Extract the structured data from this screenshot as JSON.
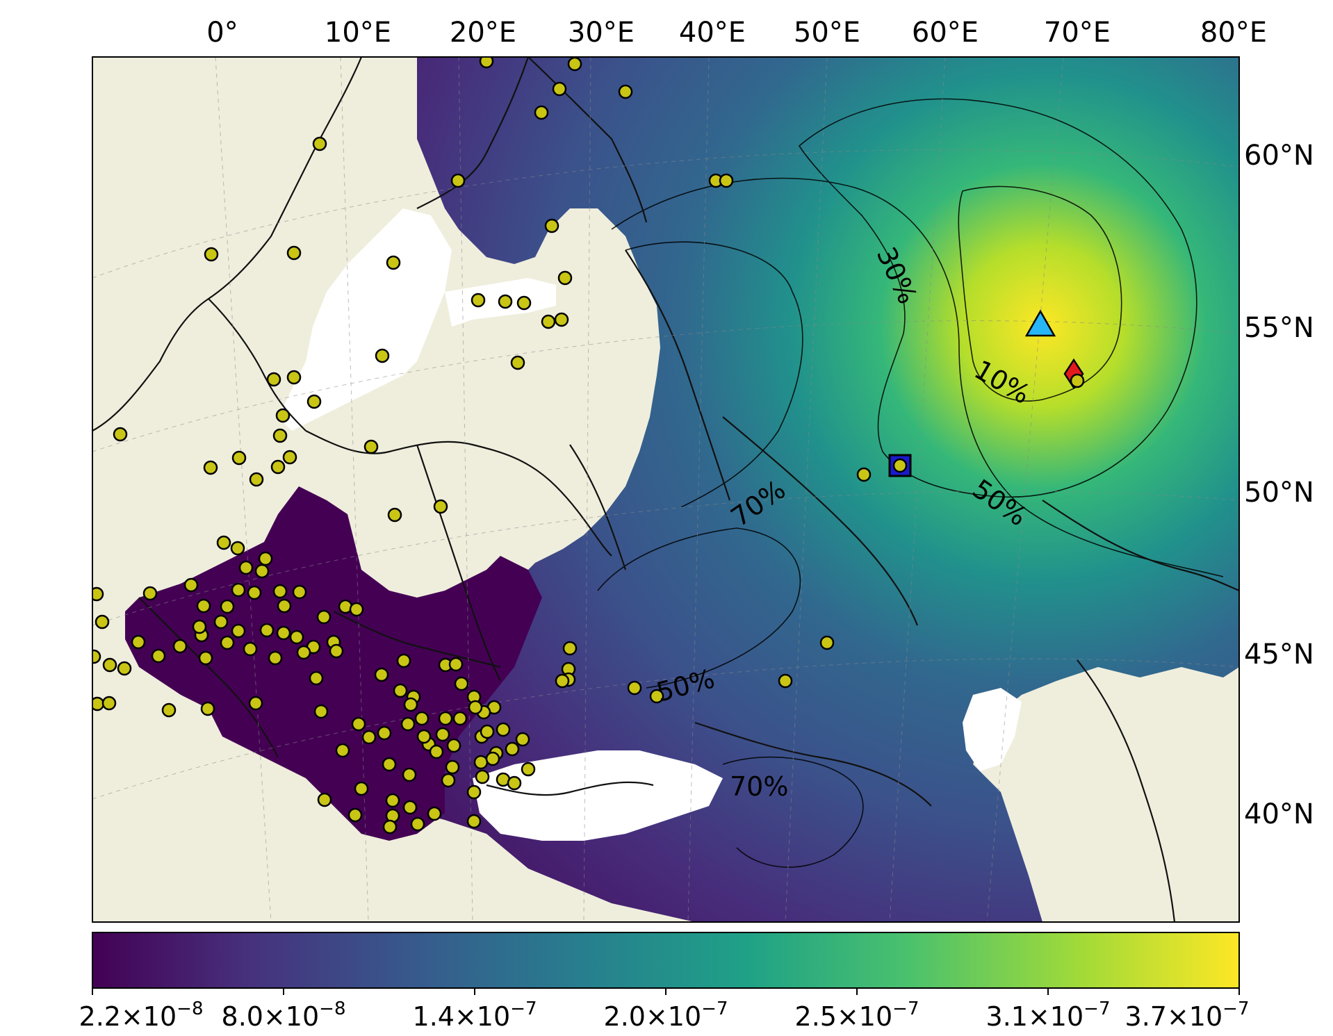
{
  "map": {
    "longitude_labels": [
      "0°",
      "10°E",
      "20°E",
      "30°E",
      "40°E",
      "50°E",
      "60°E",
      "70°E",
      "80°E"
    ],
    "latitude_labels": [
      "60°N",
      "55°N",
      "50°N",
      "45°N",
      "40°N"
    ],
    "contour_labels": [
      "30%",
      "10%",
      "70%",
      "50%",
      "50%",
      "70%"
    ],
    "colors": {
      "land": "#efeedd",
      "field_low": "#440154",
      "field_mid": "#31688e",
      "field_high": "#fde725",
      "station_marker": "#c9c515",
      "triangle_marker": "#29b6f6",
      "diamond_marker": "#e31a1c",
      "square_marker": "#1a1acc"
    },
    "markers": [
      "station-circles",
      "cyan-triangle",
      "red-diamond",
      "blue-square"
    ]
  },
  "colorbar": {
    "colormap": "viridis",
    "ticks": [
      {
        "mantissa": "2.2",
        "exponent": "−8"
      },
      {
        "mantissa": "8.0",
        "exponent": "−8"
      },
      {
        "mantissa": "1.4",
        "exponent": "−7"
      },
      {
        "mantissa": "2.0",
        "exponent": "−7"
      },
      {
        "mantissa": "2.5",
        "exponent": "−7"
      },
      {
        "mantissa": "3.1",
        "exponent": "−7"
      },
      {
        "mantissa": "3.7",
        "exponent": "−7"
      }
    ]
  }
}
